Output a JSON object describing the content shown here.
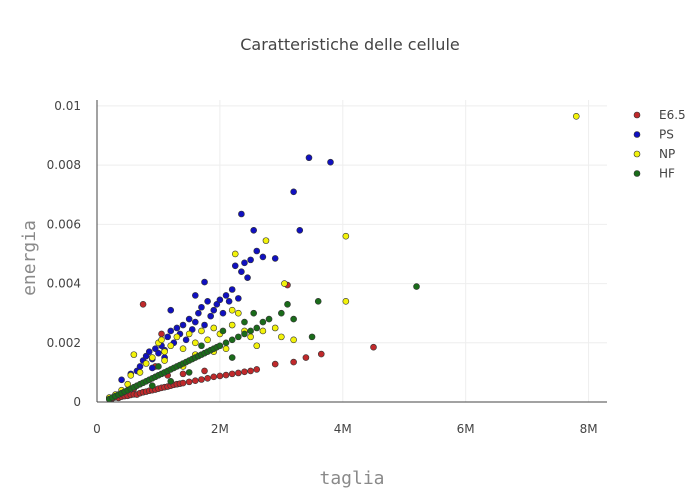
{
  "chart_data": {
    "type": "scatter",
    "title": "Caratteristiche delle cellule",
    "xlabel": "taglia",
    "ylabel": "energia",
    "xlim": [
      0,
      8300000
    ],
    "ylim": [
      0,
      0.0102
    ],
    "x_ticks": [
      {
        "value": 0,
        "label": "0"
      },
      {
        "value": 2000000,
        "label": "2M"
      },
      {
        "value": 4000000,
        "label": "4M"
      },
      {
        "value": 6000000,
        "label": "6M"
      },
      {
        "value": 8000000,
        "label": "8M"
      }
    ],
    "y_ticks": [
      {
        "value": 0,
        "label": "0"
      },
      {
        "value": 0.002,
        "label": "0.002"
      },
      {
        "value": 0.004,
        "label": "0.004"
      },
      {
        "value": 0.006,
        "label": "0.006"
      },
      {
        "value": 0.008,
        "label": "0.008"
      },
      {
        "value": 0.01,
        "label": "0.01"
      }
    ],
    "grid": true,
    "legend_position": "top-right",
    "series": [
      {
        "name": "E6.5",
        "color": "#c0292b",
        "points": [
          [
            200000,
            0.0001
          ],
          [
            250000,
            0.00012
          ],
          [
            300000,
            0.00016
          ],
          [
            350000,
            0.00014
          ],
          [
            400000,
            0.00018
          ],
          [
            450000,
            0.0002
          ],
          [
            500000,
            0.00021
          ],
          [
            550000,
            0.00024
          ],
          [
            600000,
            0.00026
          ],
          [
            650000,
            0.00025
          ],
          [
            700000,
            0.0003
          ],
          [
            750000,
            0.00033
          ],
          [
            800000,
            0.00035
          ],
          [
            850000,
            0.00038
          ],
          [
            900000,
            0.0004
          ],
          [
            950000,
            0.00042
          ],
          [
            1000000,
            0.00045
          ],
          [
            1050000,
            0.00048
          ],
          [
            1100000,
            0.0005
          ],
          [
            1150000,
            0.00052
          ],
          [
            1200000,
            0.00055
          ],
          [
            1250000,
            0.00058
          ],
          [
            1300000,
            0.0006
          ],
          [
            1350000,
            0.00062
          ],
          [
            1400000,
            0.00064
          ],
          [
            1500000,
            0.00068
          ],
          [
            1600000,
            0.00072
          ],
          [
            1700000,
            0.00076
          ],
          [
            1800000,
            0.0008
          ],
          [
            1900000,
            0.00085
          ],
          [
            2000000,
            0.00088
          ],
          [
            2100000,
            0.00091
          ],
          [
            2200000,
            0.00095
          ],
          [
            2300000,
            0.00098
          ],
          [
            2400000,
            0.00102
          ],
          [
            2500000,
            0.00105
          ],
          [
            2600000,
            0.0011
          ],
          [
            2900000,
            0.00128
          ],
          [
            3200000,
            0.00135
          ],
          [
            3400000,
            0.0015
          ],
          [
            3650000,
            0.00162
          ],
          [
            4500000,
            0.00185
          ],
          [
            750000,
            0.0033
          ],
          [
            1050000,
            0.0023
          ],
          [
            950000,
            0.0012
          ],
          [
            1150000,
            0.0009
          ],
          [
            3100000,
            0.00395
          ],
          [
            1400000,
            0.00095
          ],
          [
            1750000,
            0.00105
          ],
          [
            600000,
            0.00045
          ]
        ]
      },
      {
        "name": "PS",
        "color": "#1010c0",
        "points": [
          [
            400000,
            0.00075
          ],
          [
            550000,
            0.00095
          ],
          [
            650000,
            0.00105
          ],
          [
            700000,
            0.0012
          ],
          [
            750000,
            0.0014
          ],
          [
            800000,
            0.00155
          ],
          [
            850000,
            0.0017
          ],
          [
            900000,
            0.00145
          ],
          [
            950000,
            0.0018
          ],
          [
            1000000,
            0.00165
          ],
          [
            1050000,
            0.0019
          ],
          [
            1100000,
            0.00175
          ],
          [
            1150000,
            0.0022
          ],
          [
            1200000,
            0.0024
          ],
          [
            1250000,
            0.002
          ],
          [
            1300000,
            0.0025
          ],
          [
            1350000,
            0.0023
          ],
          [
            1400000,
            0.0026
          ],
          [
            1450000,
            0.0021
          ],
          [
            1500000,
            0.0028
          ],
          [
            1550000,
            0.00245
          ],
          [
            1600000,
            0.0027
          ],
          [
            1650000,
            0.003
          ],
          [
            1700000,
            0.0032
          ],
          [
            1750000,
            0.0026
          ],
          [
            1800000,
            0.0034
          ],
          [
            1850000,
            0.0029
          ],
          [
            1900000,
            0.0031
          ],
          [
            1950000,
            0.0033
          ],
          [
            2000000,
            0.00345
          ],
          [
            2050000,
            0.003
          ],
          [
            2100000,
            0.0036
          ],
          [
            2150000,
            0.0034
          ],
          [
            2200000,
            0.0038
          ],
          [
            2250000,
            0.0046
          ],
          [
            2300000,
            0.0035
          ],
          [
            2350000,
            0.0044
          ],
          [
            2400000,
            0.0047
          ],
          [
            2450000,
            0.0042
          ],
          [
            2500000,
            0.0048
          ],
          [
            2550000,
            0.0058
          ],
          [
            2600000,
            0.0051
          ],
          [
            2700000,
            0.0049
          ],
          [
            2900000,
            0.00485
          ],
          [
            3200000,
            0.0071
          ],
          [
            3300000,
            0.0058
          ],
          [
            3450000,
            0.00825
          ],
          [
            3800000,
            0.0081
          ],
          [
            2350000,
            0.00635
          ],
          [
            1200000,
            0.0031
          ],
          [
            1750000,
            0.00405
          ],
          [
            1600000,
            0.0036
          ],
          [
            1100000,
            0.0015
          ],
          [
            900000,
            0.00115
          ]
        ]
      },
      {
        "name": "NP",
        "color": "#f2f20a",
        "points": [
          [
            200000,
            0.00015
          ],
          [
            300000,
            0.00025
          ],
          [
            400000,
            0.0004
          ],
          [
            500000,
            0.0006
          ],
          [
            550000,
            0.0009
          ],
          [
            600000,
            0.0016
          ],
          [
            700000,
            0.001
          ],
          [
            800000,
            0.0013
          ],
          [
            900000,
            0.0015
          ],
          [
            1000000,
            0.002
          ],
          [
            1050000,
            0.0021
          ],
          [
            1100000,
            0.0017
          ],
          [
            1200000,
            0.0019
          ],
          [
            1300000,
            0.0022
          ],
          [
            1400000,
            0.0018
          ],
          [
            1500000,
            0.0023
          ],
          [
            1600000,
            0.002
          ],
          [
            1700000,
            0.0024
          ],
          [
            1800000,
            0.0021
          ],
          [
            1900000,
            0.0025
          ],
          [
            2000000,
            0.0023
          ],
          [
            2100000,
            0.0018
          ],
          [
            2200000,
            0.0026
          ],
          [
            2250000,
            0.005
          ],
          [
            2300000,
            0.003
          ],
          [
            2400000,
            0.0024
          ],
          [
            2500000,
            0.0022
          ],
          [
            2600000,
            0.0019
          ],
          [
            2700000,
            0.0024
          ],
          [
            2750000,
            0.00545
          ],
          [
            2900000,
            0.0025
          ],
          [
            3000000,
            0.0022
          ],
          [
            3050000,
            0.004
          ],
          [
            3200000,
            0.0021
          ],
          [
            4050000,
            0.0056
          ],
          [
            4050000,
            0.0034
          ],
          [
            7800000,
            0.00965
          ],
          [
            1600000,
            0.0016
          ],
          [
            1900000,
            0.0017
          ],
          [
            2200000,
            0.0031
          ],
          [
            1400000,
            0.0012
          ],
          [
            1100000,
            0.0014
          ]
        ]
      },
      {
        "name": "HF",
        "color": "#1a6b1a",
        "points": [
          [
            200000,
            0.0001
          ],
          [
            250000,
            0.00015
          ],
          [
            300000,
            0.0002
          ],
          [
            350000,
            0.00025
          ],
          [
            400000,
            0.0003
          ],
          [
            450000,
            0.00035
          ],
          [
            500000,
            0.0004
          ],
          [
            550000,
            0.00045
          ],
          [
            600000,
            0.0005
          ],
          [
            650000,
            0.00055
          ],
          [
            700000,
            0.0006
          ],
          [
            750000,
            0.00065
          ],
          [
            800000,
            0.0007
          ],
          [
            850000,
            0.00075
          ],
          [
            900000,
            0.0008
          ],
          [
            950000,
            0.00085
          ],
          [
            1000000,
            0.0009
          ],
          [
            1050000,
            0.00095
          ],
          [
            1100000,
            0.001
          ],
          [
            1150000,
            0.00105
          ],
          [
            1200000,
            0.0011
          ],
          [
            1250000,
            0.00115
          ],
          [
            1300000,
            0.0012
          ],
          [
            1350000,
            0.00125
          ],
          [
            1400000,
            0.0013
          ],
          [
            1450000,
            0.00135
          ],
          [
            1500000,
            0.0014
          ],
          [
            1550000,
            0.00145
          ],
          [
            1600000,
            0.0015
          ],
          [
            1650000,
            0.00155
          ],
          [
            1700000,
            0.0016
          ],
          [
            1750000,
            0.00165
          ],
          [
            1800000,
            0.0017
          ],
          [
            1850000,
            0.00175
          ],
          [
            1900000,
            0.0018
          ],
          [
            1950000,
            0.00185
          ],
          [
            2000000,
            0.0019
          ],
          [
            2100000,
            0.002
          ],
          [
            2200000,
            0.0021
          ],
          [
            2300000,
            0.0022
          ],
          [
            2400000,
            0.0023
          ],
          [
            2500000,
            0.0024
          ],
          [
            2600000,
            0.0025
          ],
          [
            2700000,
            0.0027
          ],
          [
            2800000,
            0.0028
          ],
          [
            3000000,
            0.003
          ],
          [
            3100000,
            0.0033
          ],
          [
            3200000,
            0.0028
          ],
          [
            3500000,
            0.0022
          ],
          [
            3600000,
            0.0034
          ],
          [
            5200000,
            0.0039
          ],
          [
            2400000,
            0.0027
          ],
          [
            2050000,
            0.0024
          ],
          [
            1700000,
            0.0019
          ],
          [
            1200000,
            0.0007
          ],
          [
            900000,
            0.00055
          ],
          [
            1500000,
            0.001
          ],
          [
            2550000,
            0.003
          ],
          [
            1000000,
            0.0012
          ],
          [
            2200000,
            0.0015
          ]
        ]
      }
    ]
  }
}
